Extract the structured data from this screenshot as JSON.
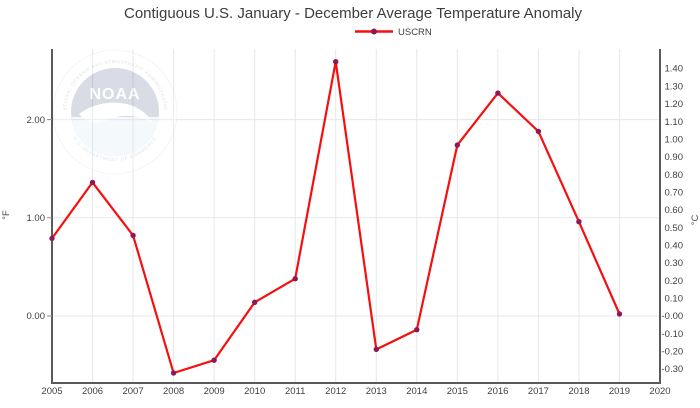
{
  "title": "Contiguous U.S. January - December Average Temperature Anomaly",
  "legend": {
    "label": "USCRN"
  },
  "watermark": {
    "label": "NOAA",
    "ring_text_top": "NATIONAL OCEANIC AND ATMOSPHERIC ADMINISTRATION",
    "ring_text_bottom": "U.S. DEPARTMENT OF COMMERCE"
  },
  "colors": {
    "line": "#f50f0f",
    "marker": "#8b1a55",
    "grid": "#e7e7e7",
    "axis": "#5a5a5a",
    "text": "#3f3f3f"
  },
  "chart_data": {
    "type": "line",
    "title": "Contiguous U.S. January - December Average Temperature Anomaly",
    "xlabel": "",
    "ylabel_left": "°F",
    "ylabel_right": "°C",
    "grid": true,
    "legend_position": "top-center",
    "xlim": [
      2005,
      2020
    ],
    "ylim_f": [
      -0.67,
      2.72
    ],
    "xticks": [
      "2005",
      "2006",
      "2007",
      "2008",
      "2009",
      "2010",
      "2011",
      "2012",
      "2013",
      "2014",
      "2015",
      "2016",
      "2017",
      "2018",
      "2019",
      "2020"
    ],
    "yticks_left": [
      {
        "label": "2.00",
        "value": 2.0
      },
      {
        "label": "1.00",
        "value": 1.0
      },
      {
        "label": "0.00",
        "value": 0.0
      }
    ],
    "yticks_right": [
      {
        "label": "1.40",
        "value": 1.4
      },
      {
        "label": "1.30",
        "value": 1.3
      },
      {
        "label": "1.20",
        "value": 1.2
      },
      {
        "label": "1.10",
        "value": 1.1
      },
      {
        "label": "1.00",
        "value": 1.0
      },
      {
        "label": "0.90",
        "value": 0.9
      },
      {
        "label": "0.80",
        "value": 0.8
      },
      {
        "label": "0.70",
        "value": 0.7
      },
      {
        "label": "0.60",
        "value": 0.6
      },
      {
        "label": "0.50",
        "value": 0.5
      },
      {
        "label": "0.40",
        "value": 0.4
      },
      {
        "label": "0.30",
        "value": 0.3
      },
      {
        "label": "0.20",
        "value": 0.2
      },
      {
        "label": "0.10",
        "value": 0.1
      },
      {
        "label": "-0.00",
        "value": 0.0
      },
      {
        "label": "-0.10",
        "value": -0.1
      },
      {
        "label": "-0.20",
        "value": -0.2
      },
      {
        "label": "-0.30",
        "value": -0.3
      }
    ],
    "x": [
      2005,
      2006,
      2007,
      2008,
      2009,
      2010,
      2011,
      2012,
      2013,
      2014,
      2015,
      2016,
      2017,
      2018,
      2019
    ],
    "series": [
      {
        "name": "USCRN",
        "color": "#f50f0f",
        "marker_color": "#8b1a55",
        "values_f": [
          0.79,
          1.36,
          0.82,
          -0.58,
          -0.45,
          0.14,
          0.38,
          2.59,
          -0.34,
          -0.14,
          1.74,
          2.27,
          1.88,
          0.96,
          0.02
        ],
        "values_c": [
          0.44,
          0.76,
          0.46,
          -0.32,
          -0.25,
          0.08,
          0.21,
          1.44,
          -0.19,
          -0.08,
          0.97,
          1.26,
          1.04,
          0.53,
          0.01
        ]
      }
    ]
  }
}
